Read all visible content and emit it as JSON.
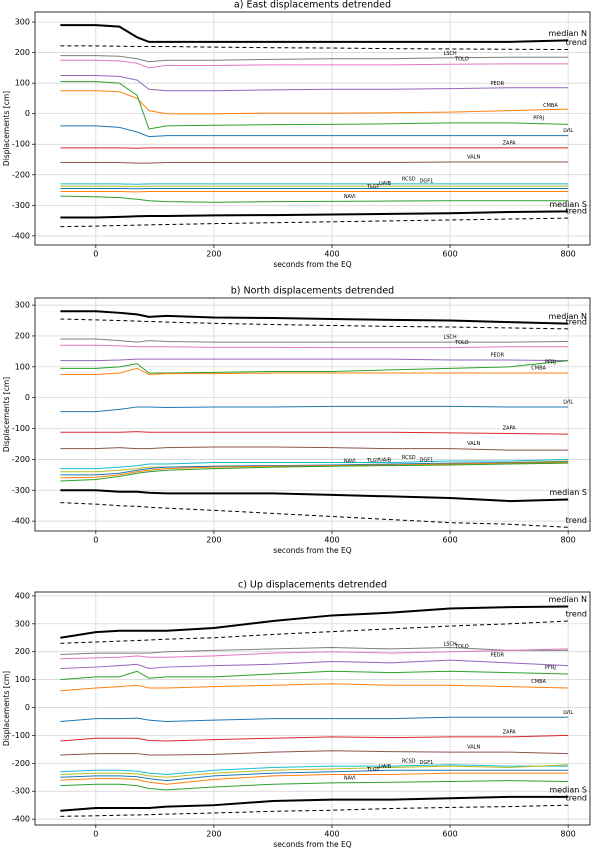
{
  "chart_data": [
    {
      "type": "line",
      "title": "a) East displacements detrended",
      "xlabel": "seconds from the EQ",
      "ylabel": "Displacements [cm]",
      "x": [
        -60,
        0,
        40,
        70,
        90,
        120,
        200,
        300,
        400,
        500,
        600,
        700,
        800
      ],
      "xlim": [
        -103,
        837
      ],
      "ylim": [
        -430,
        333
      ],
      "xticks": [
        0,
        200,
        400,
        600,
        800
      ],
      "yticks": [
        -400,
        -300,
        -200,
        -100,
        0,
        100,
        200,
        300
      ],
      "grid": true,
      "series": [
        {
          "name": "median N",
          "color": "#000000",
          "linewidth": 2,
          "values": [
            290,
            290,
            285,
            250,
            235,
            235,
            235,
            235,
            235,
            235,
            235,
            235,
            240
          ]
        },
        {
          "name": "trend",
          "color": "#000000",
          "linestyle": "dashed",
          "values": [
            222,
            222,
            221,
            220,
            220,
            220,
            218,
            216,
            215,
            213,
            212,
            211,
            210
          ]
        },
        {
          "name": "LSCH",
          "color": "#7f7f7f",
          "values": [
            190,
            190,
            188,
            180,
            170,
            175,
            175,
            178,
            180,
            180,
            183,
            185,
            185
          ]
        },
        {
          "name": "TOLO",
          "color": "#e377c2",
          "values": [
            175,
            175,
            173,
            165,
            150,
            158,
            158,
            160,
            160,
            160,
            162,
            163,
            163
          ]
        },
        {
          "name": "PEDR",
          "color": "#9467bd",
          "values": [
            125,
            125,
            122,
            110,
            80,
            75,
            75,
            78,
            80,
            80,
            82,
            85,
            85
          ]
        },
        {
          "name": "CMBA",
          "color": "#ff7f0e",
          "values": [
            75,
            75,
            72,
            50,
            10,
            0,
            0,
            2,
            2,
            3,
            5,
            10,
            15
          ]
        },
        {
          "name": "PFRJ",
          "color": "#2ca02c",
          "values": [
            105,
            105,
            100,
            60,
            -50,
            -40,
            -38,
            -36,
            -35,
            -33,
            -30,
            -30,
            -35
          ]
        },
        {
          "name": "LVIL",
          "color": "#1f77b4",
          "values": [
            -40,
            -40,
            -45,
            -60,
            -75,
            -72,
            -72,
            -72,
            -72,
            -72,
            -72,
            -72,
            -72
          ]
        },
        {
          "name": "ZAPA",
          "color": "#d62728",
          "values": [
            -112,
            -112,
            -112,
            -113,
            -112,
            -112,
            -112,
            -112,
            -112,
            -112,
            -112,
            -112,
            -112
          ]
        },
        {
          "name": "VALN",
          "color": "#8c564b",
          "values": [
            -160,
            -160,
            -160,
            -162,
            -162,
            -160,
            -160,
            -160,
            -160,
            -160,
            -158,
            -158,
            -158
          ]
        },
        {
          "name": "RCSD",
          "color": "#17becf",
          "values": [
            -230,
            -230,
            -230,
            -231,
            -230,
            -230,
            -230,
            -230,
            -230,
            -230,
            -230,
            -230,
            -230
          ]
        },
        {
          "name": "DGF1",
          "color": "#bcbd22",
          "values": [
            -237,
            -237,
            -237,
            -238,
            -237,
            -237,
            -237,
            -237,
            -237,
            -237,
            -237,
            -237,
            -237
          ]
        },
        {
          "name": "UAIB",
          "color": "#1f77b4",
          "values": [
            -245,
            -245,
            -245,
            -246,
            -245,
            -245,
            -245,
            -245,
            -245,
            -245,
            -245,
            -245,
            -245
          ]
        },
        {
          "name": "TLGT",
          "color": "#ff7f0e",
          "values": [
            -255,
            -255,
            -255,
            -256,
            -255,
            -255,
            -255,
            -255,
            -255,
            -255,
            -255,
            -255,
            -255
          ]
        },
        {
          "name": "NAVI",
          "color": "#2ca02c",
          "values": [
            -270,
            -272,
            -275,
            -280,
            -285,
            -288,
            -290,
            -288,
            -287,
            -286,
            -285,
            -285,
            -285
          ]
        },
        {
          "name": "median S",
          "color": "#000000",
          "linewidth": 2,
          "values": [
            -340,
            -340,
            -338,
            -336,
            -335,
            -335,
            -333,
            -332,
            -330,
            -328,
            -326,
            -322,
            -320
          ]
        },
        {
          "name": "trend",
          "color": "#000000",
          "linestyle": "dashed",
          "values": [
            -370,
            -368,
            -366,
            -365,
            -364,
            -363,
            -360,
            -357,
            -354,
            -351,
            -348,
            -345,
            -342
          ]
        }
      ]
    },
    {
      "type": "line",
      "title": "b) North displacements detrended",
      "xlabel": "seconds from the EQ",
      "ylabel": "Displacements [cm]",
      "x": [
        -60,
        0,
        40,
        70,
        90,
        120,
        200,
        300,
        400,
        500,
        600,
        700,
        800
      ],
      "xlim": [
        -103,
        837
      ],
      "ylim": [
        -432,
        323
      ],
      "xticks": [
        0,
        200,
        400,
        600,
        800
      ],
      "yticks": [
        -400,
        -300,
        -200,
        -100,
        0,
        100,
        200,
        300
      ],
      "grid": true,
      "series": [
        {
          "name": "median N",
          "color": "#000000",
          "linewidth": 2,
          "values": [
            280,
            280,
            275,
            270,
            262,
            265,
            260,
            258,
            255,
            252,
            250,
            245,
            240
          ]
        },
        {
          "name": "trend",
          "color": "#000000",
          "linestyle": "dashed",
          "values": [
            255,
            252,
            250,
            248,
            247,
            245,
            241,
            237,
            234,
            231,
            229,
            226,
            223
          ]
        },
        {
          "name": "LSCH",
          "color": "#7f7f7f",
          "values": [
            190,
            190,
            185,
            180,
            185,
            182,
            180,
            180,
            180,
            180,
            180,
            180,
            182
          ]
        },
        {
          "name": "TOLO",
          "color": "#e377c2",
          "values": [
            170,
            170,
            168,
            165,
            165,
            165,
            163,
            163,
            162,
            162,
            162,
            165,
            165
          ]
        },
        {
          "name": "PEDR",
          "color": "#9467bd",
          "values": [
            120,
            120,
            122,
            125,
            125,
            125,
            125,
            125,
            125,
            125,
            122,
            122,
            120
          ]
        },
        {
          "name": "PFRJ",
          "color": "#2ca02c",
          "values": [
            95,
            95,
            100,
            110,
            80,
            80,
            82,
            85,
            85,
            90,
            95,
            100,
            120
          ]
        },
        {
          "name": "CMBA",
          "color": "#ff7f0e",
          "values": [
            75,
            75,
            80,
            95,
            75,
            78,
            78,
            80,
            80,
            80,
            80,
            80,
            80
          ]
        },
        {
          "name": "LVIL",
          "color": "#1f77b4",
          "values": [
            -45,
            -45,
            -38,
            -30,
            -30,
            -32,
            -30,
            -30,
            -28,
            -28,
            -28,
            -30,
            -30
          ]
        },
        {
          "name": "ZAPA",
          "color": "#d62728",
          "values": [
            -112,
            -112,
            -112,
            -110,
            -112,
            -112,
            -112,
            -112,
            -112,
            -112,
            -114,
            -116,
            -118
          ]
        },
        {
          "name": "VALN",
          "color": "#8c564b",
          "values": [
            -165,
            -165,
            -162,
            -165,
            -165,
            -162,
            -160,
            -160,
            -162,
            -165,
            -165,
            -170,
            -170
          ]
        },
        {
          "name": "RCSD",
          "color": "#17becf",
          "values": [
            -230,
            -230,
            -225,
            -220,
            -215,
            -215,
            -210,
            -210,
            -210,
            -210,
            -205,
            -205,
            -200
          ]
        },
        {
          "name": "DGF1",
          "color": "#bcbd22",
          "values": [
            -240,
            -240,
            -235,
            -230,
            -225,
            -225,
            -222,
            -220,
            -220,
            -218,
            -215,
            -210,
            -205
          ]
        },
        {
          "name": "UAIB",
          "color": "#1f77b4",
          "values": [
            -250,
            -250,
            -245,
            -235,
            -230,
            -225,
            -222,
            -220,
            -218,
            -215,
            -212,
            -210,
            -208
          ]
        },
        {
          "name": "TLGT",
          "color": "#ff7f0e",
          "values": [
            -260,
            -258,
            -250,
            -240,
            -235,
            -230,
            -225,
            -222,
            -220,
            -218,
            -215,
            -212,
            -210
          ]
        },
        {
          "name": "NAVI",
          "color": "#2ca02c",
          "values": [
            -270,
            -265,
            -255,
            -245,
            -240,
            -235,
            -230,
            -225,
            -222,
            -220,
            -218,
            -215,
            -212
          ]
        },
        {
          "name": "median S",
          "color": "#000000",
          "linewidth": 2,
          "values": [
            -300,
            -300,
            -305,
            -305,
            -308,
            -310,
            -310,
            -310,
            -315,
            -320,
            -325,
            -335,
            -330
          ]
        },
        {
          "name": "trend",
          "color": "#000000",
          "linestyle": "dashed",
          "values": [
            -340,
            -345,
            -350,
            -352,
            -355,
            -358,
            -365,
            -375,
            -385,
            -395,
            -405,
            -410,
            -420
          ]
        }
      ]
    },
    {
      "type": "line",
      "title": "c) Up displacements detrended",
      "xlabel": "seconds from the EQ",
      "ylabel": "Displacements [cm]",
      "x": [
        -60,
        0,
        40,
        70,
        90,
        120,
        200,
        300,
        400,
        500,
        600,
        700,
        800
      ],
      "xlim": [
        -103,
        837
      ],
      "ylim": [
        -421,
        414
      ],
      "xticks": [
        0,
        200,
        400,
        600,
        800
      ],
      "yticks": [
        -400,
        -300,
        -200,
        -100,
        0,
        100,
        200,
        300,
        400
      ],
      "grid": true,
      "series": [
        {
          "name": "median N",
          "color": "#000000",
          "linewidth": 2,
          "values": [
            250,
            270,
            275,
            275,
            275,
            275,
            285,
            310,
            330,
            340,
            355,
            360,
            362
          ]
        },
        {
          "name": "trend",
          "color": "#000000",
          "linestyle": "dashed",
          "values": [
            230,
            235,
            238,
            240,
            242,
            245,
            250,
            262,
            272,
            282,
            292,
            300,
            310
          ]
        },
        {
          "name": "LSCH",
          "color": "#7f7f7f",
          "values": [
            190,
            195,
            195,
            195,
            195,
            200,
            205,
            210,
            215,
            210,
            215,
            205,
            205
          ]
        },
        {
          "name": "TOLO",
          "color": "#e377c2",
          "values": [
            175,
            178,
            180,
            185,
            180,
            180,
            185,
            195,
            200,
            195,
            200,
            205,
            210
          ]
        },
        {
          "name": "PEDR",
          "color": "#9467bd",
          "values": [
            140,
            145,
            150,
            155,
            140,
            145,
            150,
            155,
            165,
            160,
            170,
            160,
            150
          ]
        },
        {
          "name": "PFRJ",
          "color": "#2ca02c",
          "values": [
            100,
            110,
            110,
            130,
            105,
            110,
            110,
            120,
            130,
            125,
            130,
            125,
            120
          ]
        },
        {
          "name": "CMBA",
          "color": "#ff7f0e",
          "values": [
            60,
            70,
            75,
            80,
            70,
            70,
            75,
            80,
            85,
            80,
            80,
            75,
            70
          ]
        },
        {
          "name": "LVIL",
          "color": "#1f77b4",
          "values": [
            -50,
            -40,
            -40,
            -38,
            -45,
            -50,
            -45,
            -40,
            -40,
            -40,
            -35,
            -35,
            -35
          ]
        },
        {
          "name": "ZAPA",
          "color": "#d62728",
          "values": [
            -120,
            -110,
            -110,
            -110,
            -118,
            -120,
            -115,
            -110,
            -105,
            -108,
            -105,
            -105,
            -100
          ]
        },
        {
          "name": "VALN",
          "color": "#8c564b",
          "values": [
            -170,
            -165,
            -165,
            -165,
            -170,
            -170,
            -168,
            -160,
            -155,
            -158,
            -160,
            -160,
            -165
          ]
        },
        {
          "name": "RCSD",
          "color": "#17becf",
          "values": [
            -230,
            -225,
            -225,
            -228,
            -235,
            -240,
            -225,
            -215,
            -210,
            -210,
            -205,
            -210,
            -210
          ]
        },
        {
          "name": "DGF1",
          "color": "#bcbd22",
          "values": [
            -240,
            -235,
            -235,
            -238,
            -245,
            -250,
            -235,
            -225,
            -220,
            -215,
            -210,
            -215,
            -205
          ]
        },
        {
          "name": "UAIB",
          "color": "#1f77b4",
          "values": [
            -250,
            -245,
            -245,
            -248,
            -255,
            -262,
            -245,
            -235,
            -230,
            -225,
            -225,
            -225,
            -225
          ]
        },
        {
          "name": "TLGT",
          "color": "#ff7f0e",
          "values": [
            -260,
            -255,
            -255,
            -258,
            -268,
            -275,
            -258,
            -245,
            -240,
            -240,
            -235,
            -235,
            -235
          ]
        },
        {
          "name": "NAVI",
          "color": "#2ca02c",
          "values": [
            -280,
            -275,
            -275,
            -280,
            -290,
            -295,
            -285,
            -275,
            -270,
            -268,
            -265,
            -262,
            -265
          ]
        },
        {
          "name": "median S",
          "color": "#000000",
          "linewidth": 2,
          "values": [
            -370,
            -360,
            -360,
            -360,
            -360,
            -355,
            -350,
            -335,
            -330,
            -330,
            -325,
            -320,
            -320
          ]
        },
        {
          "name": "trend",
          "color": "#000000",
          "linestyle": "dashed",
          "values": [
            -390,
            -388,
            -386,
            -385,
            -384,
            -382,
            -378,
            -372,
            -368,
            -362,
            -358,
            -355,
            -350
          ]
        }
      ]
    }
  ]
}
